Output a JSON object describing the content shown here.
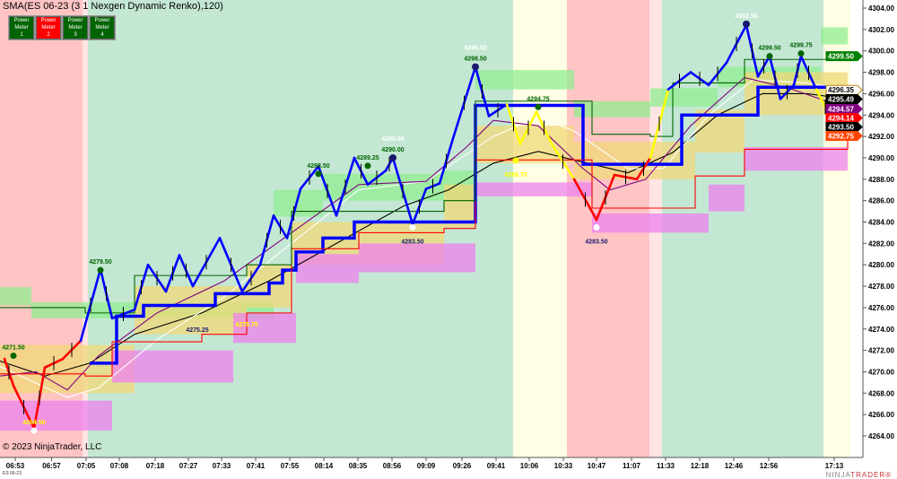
{
  "header": {
    "title": "SMA(ES 06-23 (3 1 Nexgen Dynamic Renko),120)"
  },
  "power_meters": [
    {
      "label": "Power Meter",
      "num": "1",
      "color": "#006400"
    },
    {
      "label": "Power Meter",
      "num": "2",
      "color": "#ff0000"
    },
    {
      "label": "Power Meter",
      "num": "3",
      "color": "#006400"
    },
    {
      "label": "Power Meter",
      "num": "4",
      "color": "#006400"
    }
  ],
  "footer": {
    "copyright": "© 2023 NinjaTrader, LLC",
    "instrument": "ES 06-23",
    "brand_a": "NINJA",
    "brand_b": "TRADER®"
  },
  "chart_data": {
    "type": "line",
    "title": "SMA(ES 06-23 (3 1 Nexgen Dynamic Renko),120)",
    "xlabel": "",
    "ylabel": "",
    "ylim": [
      4263,
      4305
    ],
    "y_ticks": [
      "4304.00",
      "4302.00",
      "4300.00",
      "4298.00",
      "4296.00",
      "4294.00",
      "4292.00",
      "4290.00",
      "4288.00",
      "4286.00",
      "4284.00",
      "4282.00",
      "4280.00",
      "4278.00",
      "4276.00",
      "4274.00",
      "4272.00",
      "4270.00",
      "4268.00",
      "4266.00",
      "4264.00"
    ],
    "x_ticks": [
      {
        "bar": 3.4,
        "label": "06:53"
      },
      {
        "bar": 11.5,
        "label": "06:57"
      },
      {
        "bar": 19.2,
        "label": "07:05"
      },
      {
        "bar": 26.6,
        "label": "07:08"
      },
      {
        "bar": 34.6,
        "label": "07:18"
      },
      {
        "bar": 42,
        "label": "07:27"
      },
      {
        "bar": 49.4,
        "label": "07:33"
      },
      {
        "bar": 57,
        "label": "07:41"
      },
      {
        "bar": 64.6,
        "label": "07:55"
      },
      {
        "bar": 72.2,
        "label": "08:14"
      },
      {
        "bar": 79.8,
        "label": "08:35"
      },
      {
        "bar": 87.4,
        "label": "08:56"
      },
      {
        "bar": 95,
        "label": "09:09"
      },
      {
        "bar": 103,
        "label": "09:26"
      },
      {
        "bar": 110.6,
        "label": "09:41"
      },
      {
        "bar": 118,
        "label": "10:06"
      },
      {
        "bar": 125.6,
        "label": "10:33"
      },
      {
        "bar": 133,
        "label": "10:47"
      },
      {
        "bar": 140.8,
        "label": "11:07"
      },
      {
        "bar": 148.4,
        "label": "11:33"
      },
      {
        "bar": 156,
        "label": "12:18"
      },
      {
        "bar": 163.6,
        "label": "12:46"
      },
      {
        "bar": 171.4,
        "label": "12:56"
      },
      {
        "bar": 186,
        "label": "17:13"
      }
    ],
    "zones": [
      {
        "from": 0,
        "to": 18.4,
        "state": "bear",
        "color": "#ffc4c4"
      },
      {
        "from": 18.4,
        "to": 19.6,
        "state": "neutral",
        "color": "#ffe4e4"
      },
      {
        "from": 19.6,
        "to": 114.4,
        "state": "bull",
        "color": "#c3e7d3"
      },
      {
        "from": 114.4,
        "to": 126.4,
        "state": "neutral",
        "color": "#fffde3"
      },
      {
        "from": 126.4,
        "to": 144.8,
        "state": "bear",
        "color": "#ffc4c4"
      },
      {
        "from": 144.8,
        "to": 147.6,
        "state": "neutral",
        "color": "#ffe4e4"
      },
      {
        "from": 147.6,
        "to": 183.6,
        "state": "bull",
        "color": "#c3e7d3"
      },
      {
        "from": 183.6,
        "to": 189.6,
        "state": "neutral",
        "color": "#fffde3"
      }
    ],
    "price_swings": [
      [
        1,
        4271.2
      ],
      [
        3,
        4268.7
      ],
      [
        7.6,
        4264.7
      ],
      [
        10,
        4270.4
      ],
      [
        14,
        4271.2
      ],
      [
        18,
        4272.9
      ],
      [
        22.4,
        4279.6
      ],
      [
        25,
        4275
      ],
      [
        30,
        4275.8
      ],
      [
        33,
        4280
      ],
      [
        37,
        4277.5
      ],
      [
        40,
        4280.9
      ],
      [
        43,
        4278
      ],
      [
        49,
        4282.5
      ],
      [
        54,
        4277.5
      ],
      [
        58,
        4280
      ],
      [
        61,
        4284.6
      ],
      [
        64,
        4282.5
      ],
      [
        67,
        4287.1
      ],
      [
        71,
        4289.2
      ],
      [
        75,
        4284.6
      ],
      [
        79,
        4290
      ],
      [
        82,
        4287.5
      ],
      [
        86,
        4288.8
      ],
      [
        87.6,
        4290
      ],
      [
        92,
        4283.8
      ],
      [
        95,
        4287.1
      ],
      [
        98,
        4287.6
      ],
      [
        101,
        4291.8
      ],
      [
        106,
        4298.5
      ],
      [
        109,
        4293.9
      ],
      [
        113,
        4295
      ],
      [
        116,
        4291.3
      ],
      [
        119.6,
        4294.3
      ],
      [
        123,
        4291.3
      ],
      [
        128,
        4288
      ],
      [
        133,
        4284.2
      ],
      [
        137,
        4288.4
      ],
      [
        142,
        4288
      ],
      [
        145,
        4290
      ],
      [
        149,
        4296.4
      ],
      [
        154,
        4298
      ],
      [
        158,
        4296.8
      ],
      [
        162,
        4298.9
      ],
      [
        166.4,
        4302.4
      ],
      [
        169,
        4297.6
      ],
      [
        171.6,
        4299.5
      ],
      [
        174,
        4295.5
      ],
      [
        177,
        4296.8
      ],
      [
        178.6,
        4299.5
      ],
      [
        182,
        4296.4
      ],
      [
        186,
        4293.1
      ],
      [
        189,
        4292.8
      ]
    ],
    "series": [
      {
        "role": "sma-black",
        "color": "#000000",
        "values": [
          [
            0,
            4271
          ],
          [
            10,
            4269.6
          ],
          [
            20,
            4270.8
          ],
          [
            30,
            4273.5
          ],
          [
            45,
            4275.5
          ],
          [
            60,
            4278.5
          ],
          [
            75,
            4282
          ],
          [
            90,
            4285.5
          ],
          [
            100,
            4287
          ],
          [
            110,
            4289.5
          ],
          [
            120,
            4290.6
          ],
          [
            130,
            4289.6
          ],
          [
            140,
            4288.6
          ],
          [
            150,
            4290.5
          ],
          [
            160,
            4294
          ],
          [
            170,
            4296
          ],
          [
            180,
            4296
          ],
          [
            189,
            4295.5
          ]
        ]
      },
      {
        "role": "sma-white",
        "color": "#ffffff",
        "values": [
          [
            0,
            4270.5
          ],
          [
            15,
            4267.6
          ],
          [
            22,
            4268.5
          ],
          [
            35,
            4273
          ],
          [
            50,
            4277
          ],
          [
            65,
            4282
          ],
          [
            80,
            4287
          ],
          [
            95,
            4287.8
          ],
          [
            110,
            4292
          ],
          [
            120,
            4293.8
          ],
          [
            128,
            4292.5
          ],
          [
            140,
            4289
          ],
          [
            148,
            4289
          ],
          [
            158,
            4294
          ],
          [
            168,
            4297.3
          ],
          [
            180,
            4297
          ],
          [
            189,
            4296.4
          ]
        ]
      },
      {
        "role": "sma-purple",
        "color": "#800080",
        "values": [
          [
            0,
            4269.6
          ],
          [
            8,
            4270
          ],
          [
            15,
            4268.3
          ],
          [
            22,
            4271.5
          ],
          [
            35,
            4275.5
          ],
          [
            50,
            4278.5
          ],
          [
            65,
            4283
          ],
          [
            80,
            4287.5
          ],
          [
            95,
            4287.8
          ],
          [
            104,
            4291
          ],
          [
            110,
            4293.5
          ],
          [
            120,
            4293
          ],
          [
            130,
            4289
          ],
          [
            136,
            4287
          ],
          [
            144,
            4288
          ],
          [
            154,
            4293
          ],
          [
            166,
            4297.5
          ],
          [
            176,
            4296.5
          ],
          [
            189,
            4294.6
          ]
        ]
      },
      {
        "role": "support-blue",
        "color": "#0000ff",
        "step": true,
        "values": [
          [
            20,
            4270.8
          ],
          [
            26,
            4275.2
          ],
          [
            32,
            4276.2
          ],
          [
            48,
            4277.3
          ],
          [
            60,
            4278.3
          ],
          [
            63,
            4279.5
          ],
          [
            66,
            4281.2
          ],
          [
            72,
            4282.5
          ],
          [
            79,
            4284
          ],
          [
            99,
            4284
          ],
          [
            106,
            4294.9
          ],
          [
            125,
            4294.9
          ],
          [
            130,
            4289.4
          ],
          [
            145,
            4289.4
          ],
          [
            152,
            4294
          ],
          [
            169,
            4296.6
          ],
          [
            189,
            4296.6
          ]
        ]
      },
      {
        "role": "lower-red",
        "color": "#ff0000",
        "step": true,
        "values": [
          [
            0,
            4269.8
          ],
          [
            19,
            4269.6
          ],
          [
            25,
            4272.8
          ],
          [
            45,
            4273.5
          ],
          [
            55,
            4275.5
          ],
          [
            65,
            4281.5
          ],
          [
            80,
            4283
          ],
          [
            99,
            4283.4
          ],
          [
            106,
            4289.8
          ],
          [
            128,
            4289.8
          ],
          [
            132,
            4285.3
          ],
          [
            148,
            4285.3
          ],
          [
            155,
            4288.3
          ],
          [
            166,
            4290.8
          ],
          [
            189,
            4293.5
          ]
        ]
      },
      {
        "role": "upper-green",
        "color": "#006400",
        "step": true,
        "values": [
          [
            0,
            4276
          ],
          [
            19,
            4275.5
          ],
          [
            30,
            4279
          ],
          [
            55,
            4280
          ],
          [
            65,
            4285
          ],
          [
            99,
            4286
          ],
          [
            106,
            4295.3
          ],
          [
            128,
            4295.3
          ],
          [
            132,
            4292.2
          ],
          [
            145,
            4292
          ],
          [
            150,
            4297
          ],
          [
            166,
            4299.2
          ],
          [
            189,
            4299.4
          ]
        ]
      }
    ],
    "bands": [
      {
        "role": "upper-green-band",
        "color": "#90ee90",
        "values": [
          [
            0,
            4277.9,
            4276.2
          ],
          [
            7,
            4276.5,
            4275
          ],
          [
            19,
            4276.5,
            4275
          ],
          [
            61,
            4287,
            4284.5
          ],
          [
            72,
            4288.5,
            4286
          ],
          [
            99,
            4288.8,
            4285.9
          ],
          [
            106,
            4298.2,
            4296.4
          ],
          [
            128,
            4295.3,
            4293.8
          ],
          [
            145,
            4296.5,
            4294.8
          ],
          [
            160,
            4298.5,
            4296.6
          ],
          [
            183,
            4302.2,
            4300.6
          ],
          [
            189,
            4302.2,
            4300.6
          ]
        ]
      },
      {
        "role": "middle-yellow-band",
        "color": "#f0d878",
        "values": [
          [
            0,
            4272.5,
            4268
          ],
          [
            19,
            4272.5,
            4268
          ],
          [
            30,
            4278,
            4273.5
          ],
          [
            55,
            4280,
            4276
          ],
          [
            65,
            4284,
            4280
          ],
          [
            99,
            4287.5,
            4283.5
          ],
          [
            106,
            4293,
            4289.5
          ],
          [
            125,
            4293,
            4289.5
          ],
          [
            128,
            4291.5,
            4288
          ],
          [
            145,
            4291.5,
            4288
          ],
          [
            155,
            4294.5,
            4290.5
          ],
          [
            166,
            4298,
            4294
          ],
          [
            189,
            4298,
            4294
          ]
        ]
      },
      {
        "role": "lower-magenta-band",
        "color": "#ee82ee",
        "values": [
          [
            0,
            4267.3,
            4264.5
          ],
          [
            19,
            4267.3,
            4264.5
          ],
          [
            25,
            4272,
            4269
          ],
          [
            45,
            4272,
            4269
          ],
          [
            52,
            4275.5,
            4272.7
          ],
          [
            66,
            4281,
            4278.3
          ],
          [
            80,
            4282,
            4279.3
          ],
          [
            99,
            4282,
            4279.3
          ],
          [
            106,
            4287.7,
            4286.4
          ],
          [
            128,
            4287.7,
            4286.4
          ],
          [
            132,
            4284.8,
            4283
          ],
          [
            148,
            4284.8,
            4283
          ],
          [
            158,
            4287.5,
            4285
          ],
          [
            166,
            4291,
            4288.8
          ],
          [
            189,
            4291,
            4289.8
          ]
        ]
      }
    ],
    "annotations": [
      {
        "bar": 3,
        "price": 4271.5,
        "text": "4271.50",
        "color": "#006400",
        "dot": "#006400"
      },
      {
        "bar": 7.6,
        "price": 4264.5,
        "text": "4264.50",
        "color": "#ffff00",
        "dot": "#ffffff"
      },
      {
        "bar": 22.4,
        "price": 4279.5,
        "text": "4279.50",
        "color": "#006400",
        "dot": "#006400"
      },
      {
        "bar": 44,
        "price": 4275.25,
        "text": "4275.25",
        "color": "#191970",
        "below": true
      },
      {
        "bar": 55,
        "price": 4275.75,
        "text": "4275.75",
        "color": "#ffff00",
        "below": true
      },
      {
        "bar": 71,
        "price": 4288.5,
        "text": "4288.50",
        "color": "#006400",
        "dot": "#006400"
      },
      {
        "bar": 82,
        "price": 4289.25,
        "text": "4289.25",
        "color": "#006400",
        "dot": "#006400"
      },
      {
        "bar": 87.6,
        "price": 4290.0,
        "text": "4290.00",
        "color": "#006400",
        "dot": "#191970",
        "top_text": "4290.00"
      },
      {
        "bar": 92,
        "price": 4283.5,
        "text": "4283.50",
        "color": "#191970",
        "dot": "#ffffff",
        "below": true
      },
      {
        "bar": 106,
        "price": 4298.5,
        "text": "4298.50",
        "color": "#006400",
        "dot": "#191970",
        "top_text": "4298.50"
      },
      {
        "bar": 120,
        "price": 4294.75,
        "text": "4294.75",
        "color": "#006400",
        "dot": "#006400"
      },
      {
        "bar": 115,
        "price": 4289.75,
        "text": "4289.75",
        "color": "#ffff00",
        "dot": "#ffff00",
        "below": true
      },
      {
        "bar": 133,
        "price": 4283.5,
        "text": "4283.50",
        "color": "#191970",
        "dot": "#ffffff",
        "below": true
      },
      {
        "bar": 166.4,
        "price": 4302.5,
        "text": "4302.50",
        "color": "#ffffff",
        "dot": "#191970"
      },
      {
        "bar": 171.6,
        "price": 4299.5,
        "text": "4299.50",
        "color": "#006400",
        "dot": "#006400"
      },
      {
        "bar": 178.6,
        "price": 4299.75,
        "text": "4299.75",
        "color": "#006400",
        "dot": "#006400"
      }
    ],
    "price_markers": [
      {
        "price": 4299.5,
        "text": "4299.50",
        "bg": "#008000",
        "fg": "#ffffff"
      },
      {
        "price": 4296.35,
        "text": "4296.35",
        "bg": "#ffffff",
        "fg": "#000000"
      },
      {
        "price": 4295.49,
        "text": "4295.49",
        "bg": "#000000",
        "fg": "#ffffff"
      },
      {
        "price": 4294.57,
        "text": "4294.57",
        "bg": "#800080",
        "fg": "#ffffff"
      },
      {
        "price": 4294.14,
        "text": "4294.14",
        "bg": "#ff0000",
        "fg": "#ffffff"
      },
      {
        "price": 4293.5,
        "text": "4293.50",
        "bg": "#000000",
        "fg": "#ffffff"
      },
      {
        "price": 4292.75,
        "text": "4292.75",
        "bg": "#ff4500",
        "fg": "#ffffff"
      }
    ]
  }
}
